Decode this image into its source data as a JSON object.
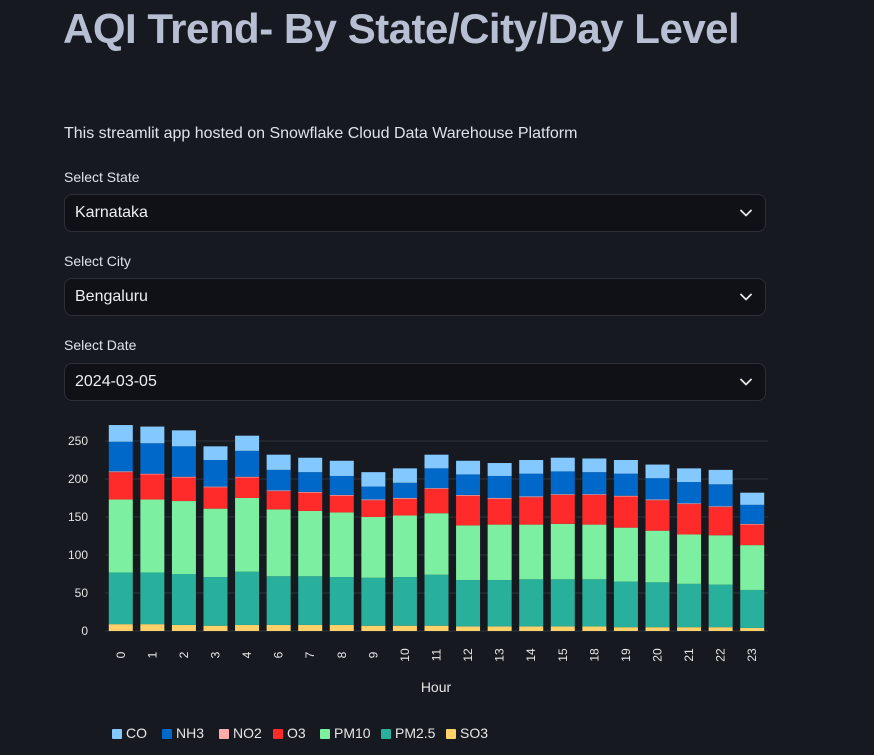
{
  "header": {
    "title": "AQI Trend- By State/City/Day Level",
    "subtitle": "This streamlit app hosted on Snowflake Cloud Data Warehouse Platform"
  },
  "filters": {
    "state": {
      "label": "Select State",
      "value": "Karnataka"
    },
    "city": {
      "label": "Select City",
      "value": "Bengaluru"
    },
    "date": {
      "label": "Select Date",
      "value": "2024-03-05"
    }
  },
  "colors": {
    "background": "#16191f",
    "CO": "#83c9ff",
    "NH3": "#0068c9",
    "NO2": "#ffabab",
    "O3": "#ff2b2b",
    "PM10": "#7defa1",
    "PM2.5": "#29b09d",
    "SO3": "#ffd16a"
  },
  "chart_data": {
    "type": "bar",
    "stacked": true,
    "xlabel": "Hour",
    "ylabel": "",
    "ylim": [
      0,
      250
    ],
    "yticks": [
      0,
      50,
      100,
      150,
      200,
      250
    ],
    "categories": [
      "0",
      "1",
      "2",
      "3",
      "4",
      "6",
      "7",
      "8",
      "9",
      "10",
      "11",
      "12",
      "13",
      "14",
      "15",
      "18",
      "19",
      "20",
      "21",
      "22",
      "23"
    ],
    "series": [
      {
        "name": "SO3",
        "values": [
          9,
          9,
          8,
          7,
          8,
          8,
          8,
          8,
          7,
          7,
          7,
          6,
          6,
          6,
          6,
          6,
          5,
          5,
          5,
          5,
          4
        ]
      },
      {
        "name": "PM2.5",
        "values": [
          68,
          68,
          67,
          64,
          70,
          64,
          64,
          63,
          63,
          64,
          67,
          61,
          61,
          62,
          62,
          62,
          60,
          59,
          57,
          56,
          50
        ]
      },
      {
        "name": "PM10",
        "values": [
          96,
          96,
          96,
          90,
          97,
          88,
          86,
          85,
          80,
          81,
          81,
          72,
          73,
          72,
          73,
          72,
          71,
          68,
          65,
          65,
          59
        ]
      },
      {
        "name": "O3",
        "values": [
          36,
          33,
          31,
          28,
          27,
          24,
          24,
          22,
          22,
          22,
          32,
          39,
          34,
          36,
          38,
          39,
          41,
          40,
          40,
          37,
          27
        ]
      },
      {
        "name": "NO2",
        "values": [
          1,
          1,
          1,
          1,
          1,
          1,
          1,
          1,
          1,
          1,
          1,
          1,
          1,
          1,
          1,
          1,
          1,
          1,
          1,
          1,
          1
        ]
      },
      {
        "name": "NH3",
        "values": [
          39,
          40,
          40,
          35,
          34,
          27,
          26,
          25,
          17,
          20,
          26,
          27,
          29,
          30,
          30,
          29,
          29,
          28,
          28,
          29,
          25
        ]
      },
      {
        "name": "CO",
        "values": [
          22,
          22,
          21,
          18,
          20,
          20,
          19,
          20,
          19,
          19,
          18,
          18,
          17,
          18,
          18,
          18,
          18,
          18,
          18,
          19,
          16
        ]
      }
    ],
    "legend": [
      "CO",
      "NH3",
      "NO2",
      "O3",
      "PM10",
      "PM2.5",
      "SO3"
    ],
    "legend_position": "bottom-left"
  }
}
